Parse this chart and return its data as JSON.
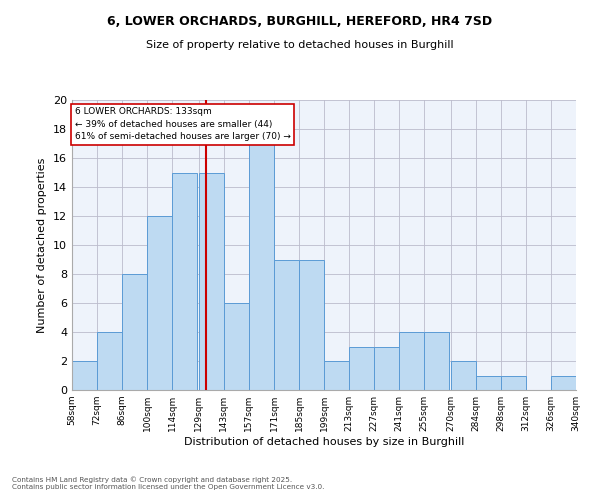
{
  "title_line1": "6, LOWER ORCHARDS, BURGHILL, HEREFORD, HR4 7SD",
  "title_line2": "Size of property relative to detached houses in Burghill",
  "xlabel": "Distribution of detached houses by size in Burghill",
  "ylabel": "Number of detached properties",
  "bar_color": "#BEDAF2",
  "bar_edge_color": "#5B9BD5",
  "background_color": "#EEF3FB",
  "grid_color": "#BBBBCC",
  "bins": [
    58,
    72,
    86,
    100,
    114,
    129,
    143,
    157,
    171,
    185,
    199,
    213,
    227,
    241,
    255,
    270,
    284,
    298,
    312,
    326,
    340
  ],
  "bin_labels": [
    "58sqm",
    "72sqm",
    "86sqm",
    "100sqm",
    "114sqm",
    "129sqm",
    "143sqm",
    "157sqm",
    "171sqm",
    "185sqm",
    "199sqm",
    "213sqm",
    "227sqm",
    "241sqm",
    "255sqm",
    "270sqm",
    "284sqm",
    "298sqm",
    "312sqm",
    "326sqm",
    "340sqm"
  ],
  "counts": [
    2,
    4,
    8,
    12,
    15,
    15,
    6,
    17,
    9,
    9,
    2,
    3,
    3,
    4,
    4,
    2,
    1,
    1,
    0,
    1
  ],
  "vline_x": 133,
  "vline_color": "#CC0000",
  "annotation_text": "6 LOWER ORCHARDS: 133sqm\n← 39% of detached houses are smaller (44)\n61% of semi-detached houses are larger (70) →",
  "annotation_box_color": "#FFFFFF",
  "annotation_box_edge": "#CC0000",
  "ylim": [
    0,
    20
  ],
  "yticks": [
    0,
    2,
    4,
    6,
    8,
    10,
    12,
    14,
    16,
    18,
    20
  ],
  "footer_line1": "Contains HM Land Registry data © Crown copyright and database right 2025.",
  "footer_line2": "Contains public sector information licensed under the Open Government Licence v3.0."
}
